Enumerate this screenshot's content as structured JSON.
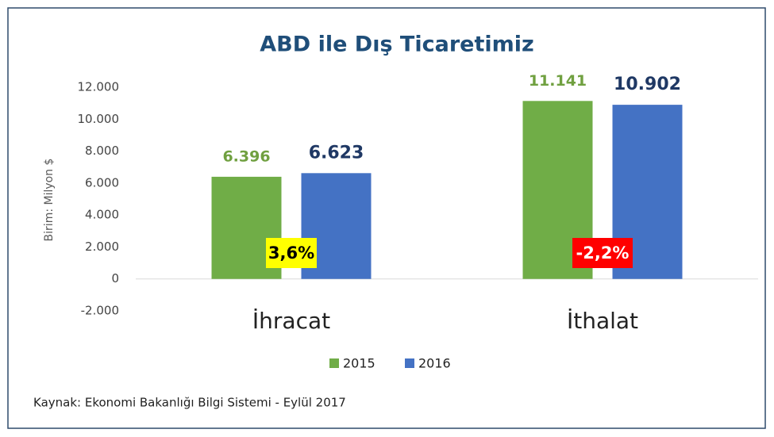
{
  "chart_data": {
    "type": "bar",
    "title": "ABD ile Dış Ticaretimiz",
    "y_label": "Birim: Milyon $",
    "source": "Kaynak: Ekonomi Bakanlığı Bilgi Sistemi - Eylül 2017",
    "categories": [
      "İhracat",
      "İthalat"
    ],
    "series": [
      {
        "name": "2015",
        "color": "#70ad47",
        "label_color": "#70a040",
        "values": [
          6396,
          11141
        ],
        "value_labels": [
          "6.396",
          "11.141"
        ]
      },
      {
        "name": "2016",
        "color": "#4472c4",
        "label_color": "#1f3864",
        "values": [
          6623,
          10902
        ],
        "value_labels": [
          "6.623",
          "10.902"
        ]
      }
    ],
    "annotations": [
      {
        "text": "3,6%",
        "color": "#ffff00",
        "text_color": "#000000"
      },
      {
        "text": "-2,2%",
        "color": "#ff0000",
        "text_color": "#ffffff"
      }
    ],
    "ylim": [
      -2000,
      12000
    ],
    "yticks": [
      {
        "value": -2000,
        "label": "-2.000"
      },
      0,
      {
        "value": 2000,
        "label": "2.000"
      },
      {
        "value": 4000,
        "label": "4.000"
      },
      {
        "value": 6000,
        "label": "6.000"
      },
      {
        "value": 8000,
        "label": "8.000"
      },
      {
        "value": 10000,
        "label": "10.000"
      },
      {
        "value": 12000,
        "label": "12.000"
      }
    ],
    "grid": false,
    "legend": "bottom"
  }
}
